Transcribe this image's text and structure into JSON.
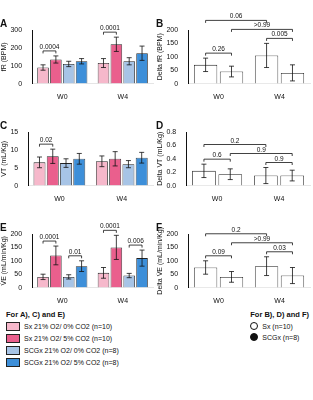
{
  "chart_data": [
    {
      "type": "bar",
      "title": "A",
      "y_label": "fR (BPM)",
      "categories": [
        "W0",
        "W4"
      ],
      "ylim": [
        0,
        300
      ],
      "yticks": [
        0,
        100,
        200,
        300
      ],
      "grid": false,
      "series": [
        {
          "name": "Sx 21% O2/ 0% CO2 (n=10)",
          "color": "#f6b8cb",
          "values": [
            90,
            115
          ],
          "errors": [
            15,
            25
          ]
        },
        {
          "name": "Sx 21% O2/ 5% CO2 (n=10)",
          "color": "#ea5f8d",
          "values": [
            135,
            220
          ],
          "errors": [
            20,
            40
          ]
        },
        {
          "name": "SCGx 21% O2/ 0% CO2 (n=8)",
          "color": "#a7c4e6",
          "values": [
            110,
            125
          ],
          "errors": [
            15,
            20
          ]
        },
        {
          "name": "SCGx 21% O2/ 5% CO2 (n=8)",
          "color": "#3d8fd9",
          "values": [
            125,
            170
          ],
          "errors": [
            15,
            40
          ]
        }
      ],
      "annotations": [
        {
          "text": "0.0004",
          "from": [
            0,
            0
          ],
          "to": [
            0,
            1
          ]
        },
        {
          "text": "0.0001",
          "from": [
            1,
            0
          ],
          "to": [
            1,
            1
          ]
        }
      ]
    },
    {
      "type": "bar",
      "title": "B",
      "y_label": "Delta fR (BPM)",
      "categories": [
        "W0",
        "W4"
      ],
      "ylim": [
        0,
        200
      ],
      "yticks": [
        0,
        50,
        100,
        150,
        200
      ],
      "grid": false,
      "series": [
        {
          "name": "Sx (n=10)",
          "color": "#ffffff",
          "marker": "open_circle",
          "values": [
            70,
            105
          ],
          "errors": [
            25,
            45
          ]
        },
        {
          "name": "SCGx (n=8)",
          "color": "#ffffff",
          "marker": "filled_circle",
          "values": [
            45,
            40
          ],
          "errors": [
            20,
            30
          ]
        }
      ],
      "annotations": [
        {
          "text": "0.26",
          "from": [
            0,
            0
          ],
          "to": [
            0,
            1
          ]
        },
        {
          "text": "0.005",
          "from": [
            1,
            0
          ],
          "to": [
            1,
            1
          ]
        },
        {
          "text": ">0.99",
          "from": [
            0,
            1
          ],
          "to": [
            1,
            1
          ]
        },
        {
          "text": "0.06",
          "from": [
            0,
            0
          ],
          "to": [
            1,
            0
          ]
        }
      ]
    },
    {
      "type": "bar",
      "title": "C",
      "y_label": "VT (mL/Kg)",
      "categories": [
        "W0",
        "W4"
      ],
      "ylim": [
        0,
        15
      ],
      "yticks": [
        0,
        5,
        10,
        15
      ],
      "grid": false,
      "series": [
        {
          "name": "Sx 21% O2/ 0% CO2 (n=10)",
          "color": "#f6b8cb",
          "values": [
            6.5,
            6.8
          ],
          "errors": [
            1.5,
            1.5
          ]
        },
        {
          "name": "Sx 21% O2/ 5% CO2 (n=10)",
          "color": "#ea5f8d",
          "values": [
            8.2,
            7.5
          ],
          "errors": [
            2,
            2
          ]
        },
        {
          "name": "SCGx 21% O2/ 0% CO2 (n=8)",
          "color": "#a7c4e6",
          "values": [
            6.3,
            6
          ],
          "errors": [
            1.2,
            1
          ]
        },
        {
          "name": "SCGx 21% O2/ 5% CO2 (n=8)",
          "color": "#3d8fd9",
          "values": [
            7.5,
            7.8
          ],
          "errors": [
            1.5,
            1.5
          ]
        }
      ],
      "annotations": [
        {
          "text": "0.02",
          "from": [
            0,
            0
          ],
          "to": [
            0,
            1
          ]
        }
      ]
    },
    {
      "type": "bar",
      "title": "D",
      "y_label": "Delta VT (mL/Kg)",
      "categories": [
        "W0",
        "W4"
      ],
      "ylim": [
        0,
        0.8
      ],
      "yticks": [
        {
          "value": 0,
          "label": "0.0"
        },
        0.2,
        0.4,
        0.6,
        0.8
      ],
      "grid": false,
      "series": [
        {
          "name": "Sx (n=10)",
          "color": "#ffffff",
          "marker": "open_circle",
          "values": [
            0.22,
            0.15
          ],
          "errors": [
            0.1,
            0.12
          ]
        },
        {
          "name": "SCGx (n=8)",
          "color": "#ffffff",
          "marker": "filled_circle",
          "values": [
            0.17,
            0.15
          ],
          "errors": [
            0.08,
            0.08
          ]
        }
      ],
      "annotations": [
        {
          "text": "0.6",
          "from": [
            0,
            0
          ],
          "to": [
            0,
            1
          ]
        },
        {
          "text": "0.9",
          "from": [
            1,
            0
          ],
          "to": [
            1,
            1
          ]
        },
        {
          "text": "0.9",
          "from": [
            0,
            1
          ],
          "to": [
            1,
            1
          ]
        },
        {
          "text": "0.2",
          "from": [
            0,
            0
          ],
          "to": [
            1,
            0
          ]
        }
      ]
    },
    {
      "type": "bar",
      "title": "E",
      "y_label": "V̇E (mL/min/Kg)",
      "categories": [
        "W0",
        "W4"
      ],
      "ylim": [
        0,
        200
      ],
      "yticks": [
        0,
        50,
        100,
        150,
        200
      ],
      "grid": false,
      "series": [
        {
          "name": "Sx 21% O2/ 0% CO2 (n=10)",
          "color": "#f6b8cb",
          "values": [
            40,
            55
          ],
          "errors": [
            10,
            20
          ]
        },
        {
          "name": "Sx 21% O2/ 5% CO2 (n=10)",
          "color": "#ea5f8d",
          "values": [
            120,
            150
          ],
          "errors": [
            35,
            45
          ]
        },
        {
          "name": "SCGx 21% O2/ 0% CO2 (n=8)",
          "color": "#a7c4e6",
          "values": [
            40,
            45
          ],
          "errors": [
            8,
            8
          ]
        },
        {
          "name": "SCGx 21% O2/ 5% CO2 (n=8)",
          "color": "#3d8fd9",
          "values": [
            80,
            110
          ],
          "errors": [
            20,
            30
          ]
        }
      ],
      "annotations": [
        {
          "text": "0.0001",
          "from": [
            0,
            0
          ],
          "to": [
            0,
            1
          ]
        },
        {
          "text": "0.01",
          "from": [
            0,
            2
          ],
          "to": [
            0,
            3
          ]
        },
        {
          "text": "0.0001",
          "from": [
            1,
            0
          ],
          "to": [
            1,
            1
          ]
        },
        {
          "text": "0.006",
          "from": [
            1,
            2
          ],
          "to": [
            1,
            3
          ]
        }
      ]
    },
    {
      "type": "bar",
      "title": "F",
      "y_label": "Delta V̇E (mL/min/Kg)",
      "categories": [
        "W0",
        "W4"
      ],
      "ylim": [
        0,
        200
      ],
      "yticks": [
        0,
        50,
        100,
        150,
        200
      ],
      "grid": false,
      "series": [
        {
          "name": "Sx (n=10)",
          "color": "#ffffff",
          "marker": "open_circle",
          "values": [
            75,
            80
          ],
          "errors": [
            25,
            35
          ]
        },
        {
          "name": "SCGx (n=8)",
          "color": "#ffffff",
          "marker": "filled_circle",
          "values": [
            40,
            45
          ],
          "errors": [
            20,
            30
          ]
        }
      ],
      "annotations": [
        {
          "text": "0.09",
          "from": [
            0,
            0
          ],
          "to": [
            0,
            1
          ]
        },
        {
          "text": "0.03",
          "from": [
            1,
            0
          ],
          "to": [
            1,
            1
          ]
        },
        {
          "text": ">0.99",
          "from": [
            0,
            1
          ],
          "to": [
            1,
            1
          ]
        },
        {
          "text": "0.2",
          "from": [
            0,
            0
          ],
          "to": [
            1,
            0
          ]
        }
      ]
    }
  ],
  "legend_titles": [
    "For A), C) and E)",
    "For B), D) and F)"
  ]
}
